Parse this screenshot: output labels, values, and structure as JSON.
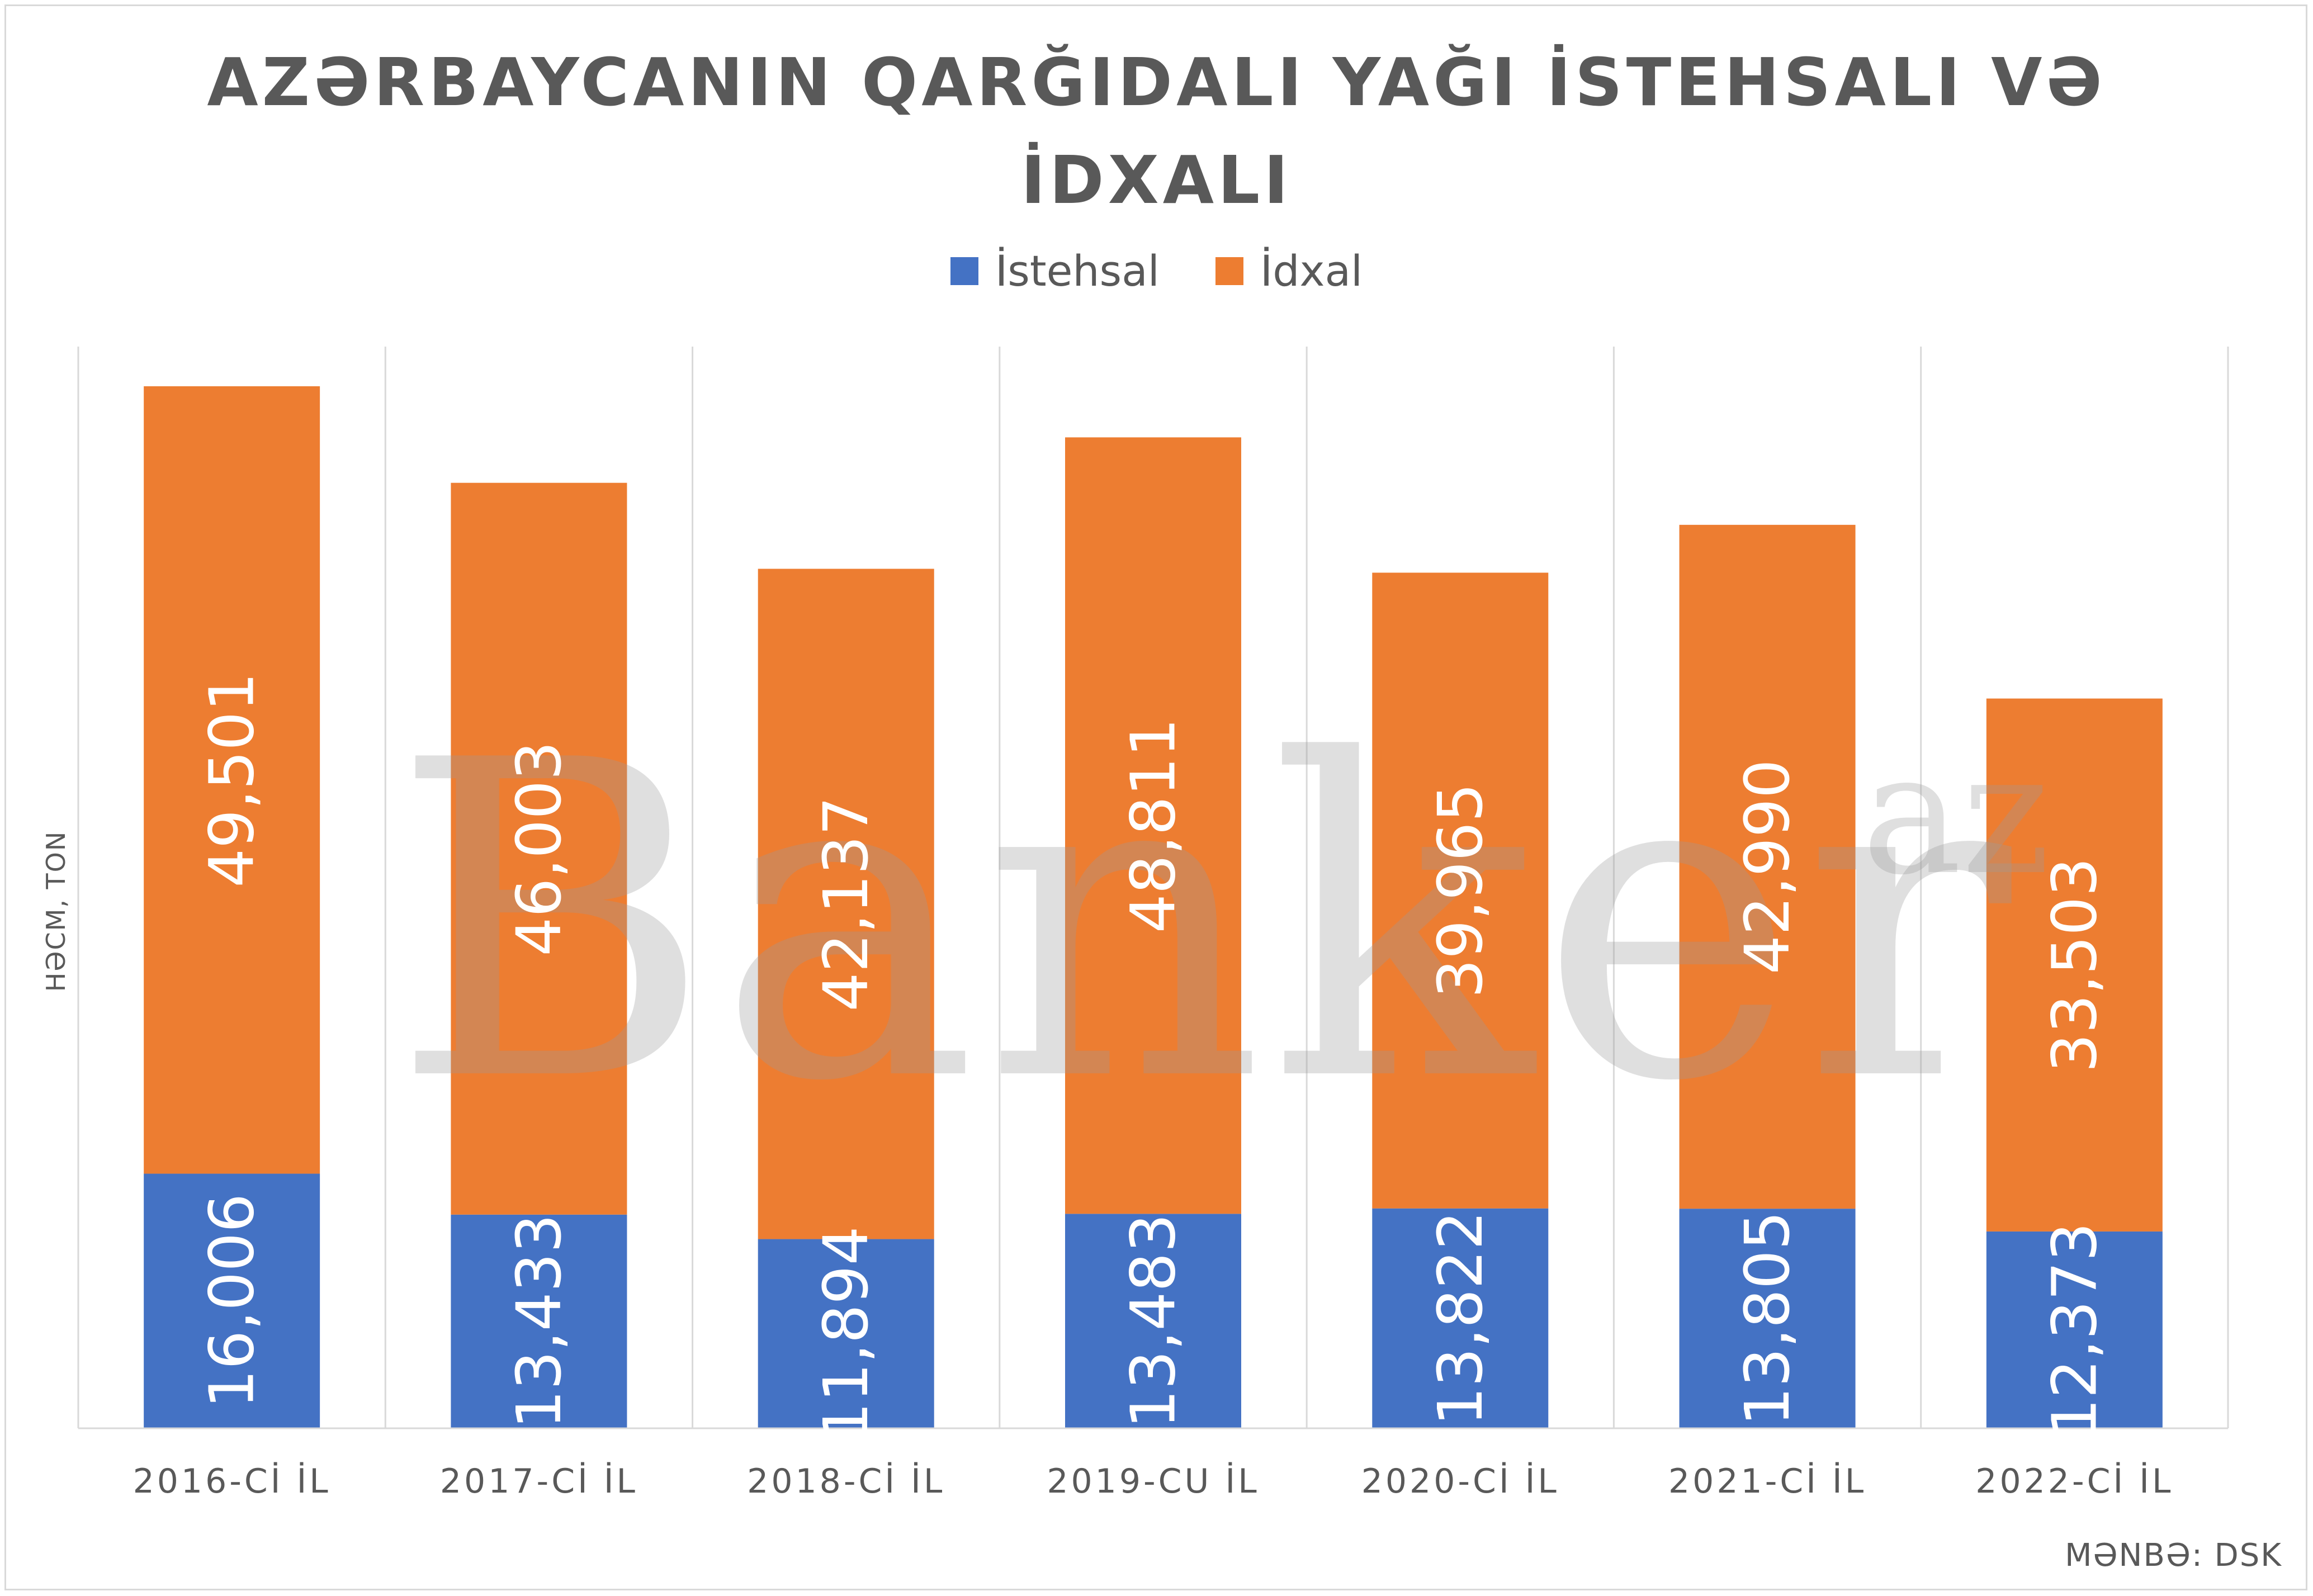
{
  "title_lines": [
    "AZƏRBAYCANIN QARĞIDALI YAĞI İSTEHSALI VƏ",
    "İDXALI"
  ],
  "ylabel": "HƏCM, TON",
  "source": "MƏNBƏ: DSK",
  "watermark": {
    "main": "Banker",
    "suffix": "az"
  },
  "colors": {
    "istehsal": "#4472c4",
    "idxal": "#ed7d31",
    "grid": "#d9d9d9",
    "text": "#595959"
  },
  "chart_data": {
    "type": "bar",
    "stacked": true,
    "categories": [
      "2016-Cİ İL",
      "2017-Cİ İL",
      "2018-Cİ İL",
      "2019-CU İL",
      "2020-Cİ İL",
      "2021-Cİ İL",
      "2022-Cİ İL"
    ],
    "series": [
      {
        "name": "İstehsal",
        "values": [
          16006,
          13433,
          11894,
          13483,
          13822,
          13805,
          12373
        ],
        "labels": [
          "16,006",
          "13,433",
          "11,894",
          "13,483",
          "13,822",
          "13,805",
          "12,373"
        ]
      },
      {
        "name": "İdxal",
        "values": [
          49501,
          46003,
          42137,
          48811,
          39965,
          42990,
          33503
        ],
        "labels": [
          "49,501",
          "46,003",
          "42,137",
          "48,811",
          "39,965",
          "42,990",
          "33,503"
        ]
      }
    ],
    "legend_position": "top",
    "grid": "vertical"
  }
}
